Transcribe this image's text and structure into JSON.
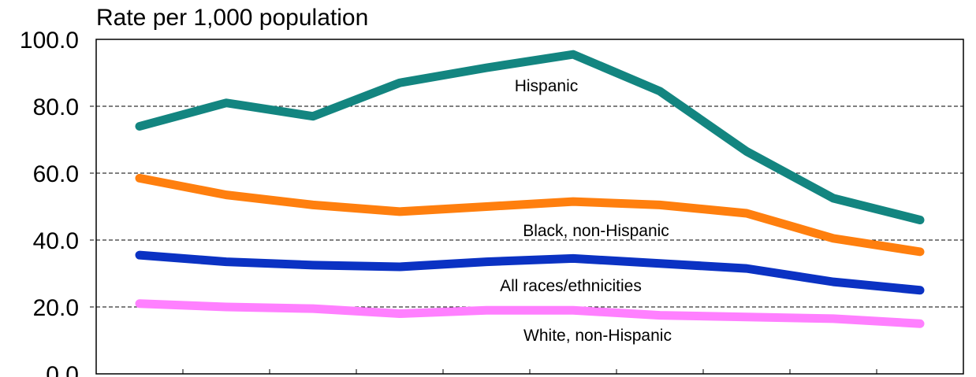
{
  "chart_data": {
    "type": "line",
    "ylabel": "Rate per 1,000 population",
    "ylim": [
      0,
      100
    ],
    "grid": "dashed horizontal",
    "yticks": [
      "0.0",
      "20.0",
      "40.0",
      "60.0",
      "80.0",
      "100.0"
    ],
    "x": [
      1,
      2,
      3,
      4,
      5,
      6,
      7,
      8,
      9,
      10
    ],
    "series": [
      {
        "name": "Hispanic",
        "color": "#138580",
        "values": [
          74,
          81,
          77,
          87,
          91.5,
          95.5,
          84.5,
          66.5,
          52.5,
          46
        ]
      },
      {
        "name": "Black, non-Hispanic",
        "color": "#ff7f0e",
        "values": [
          58.5,
          53.5,
          50.5,
          48.5,
          50,
          51.5,
          50.5,
          48,
          40.5,
          36.5
        ]
      },
      {
        "name": "All races/ethnicities",
        "color": "#0b32c3",
        "values": [
          35.5,
          33.5,
          32.5,
          32,
          33.5,
          34.5,
          33,
          31.5,
          27.5,
          25
        ]
      },
      {
        "name": "White, non-Hispanic",
        "color": "#ff80ff",
        "values": [
          21,
          20,
          19.5,
          18,
          19,
          19,
          17.5,
          17,
          16.5,
          15
        ]
      }
    ]
  }
}
